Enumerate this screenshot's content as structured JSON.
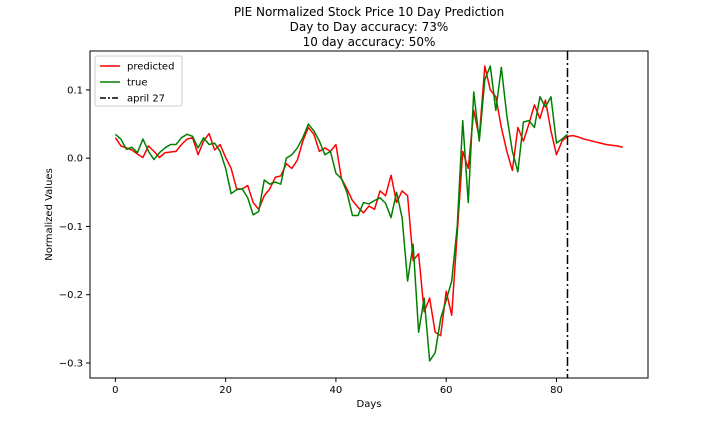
{
  "chart_data": {
    "type": "line",
    "title": [
      "PIE Normalized Stock Price 10 Day Prediction",
      "Day to Day accuracy: 73%",
      "10 day accuracy: 50%"
    ],
    "xlabel": "Days",
    "ylabel": "Normalized Values",
    "xlim": [
      -4.6,
      96.6
    ],
    "ylim": [
      -0.322,
      0.157
    ],
    "xticks": [
      0,
      20,
      40,
      60,
      80
    ],
    "yticks": [
      -0.3,
      -0.2,
      -0.1,
      0.0,
      0.1
    ],
    "ytick_labels": [
      "−0.3",
      "−0.2",
      "−0.1",
      "0.0",
      "0.1"
    ],
    "grid": false,
    "legend_position": "top-left",
    "vline": {
      "name": "april 27",
      "x": 82,
      "color": "#000000",
      "style": "dash-dot"
    },
    "series": [
      {
        "name": "predicted",
        "color": "#ff0000",
        "x": [
          0,
          1,
          2,
          3,
          4,
          5,
          6,
          7,
          8,
          9,
          10,
          11,
          12,
          13,
          14,
          15,
          16,
          17,
          18,
          19,
          20,
          21,
          22,
          23,
          24,
          25,
          26,
          27,
          28,
          29,
          30,
          31,
          32,
          33,
          34,
          35,
          36,
          37,
          38,
          39,
          40,
          41,
          42,
          43,
          44,
          45,
          46,
          47,
          48,
          49,
          50,
          51,
          52,
          53,
          54,
          55,
          56,
          57,
          58,
          59,
          60,
          61,
          62,
          63,
          64,
          65,
          66,
          67,
          68,
          69,
          70,
          71,
          72,
          73,
          74,
          75,
          76,
          77,
          78,
          79,
          80,
          81,
          82,
          83,
          84,
          85,
          86,
          87,
          88,
          89,
          90,
          91,
          92
        ],
        "y": [
          0.03,
          0.018,
          0.015,
          0.012,
          0.006,
          0.001,
          0.018,
          0.01,
          0.001,
          0.008,
          0.009,
          0.01,
          0.02,
          0.028,
          0.03,
          0.005,
          0.025,
          0.036,
          0.012,
          0.02,
          0.001,
          -0.015,
          -0.045,
          -0.045,
          -0.04,
          -0.065,
          -0.075,
          -0.055,
          -0.045,
          -0.028,
          -0.026,
          -0.008,
          -0.015,
          -0.003,
          0.025,
          0.045,
          0.035,
          0.01,
          0.015,
          0.01,
          0.02,
          -0.03,
          -0.045,
          -0.062,
          -0.072,
          -0.08,
          -0.07,
          -0.075,
          -0.048,
          -0.055,
          -0.025,
          -0.065,
          -0.048,
          -0.055,
          -0.15,
          -0.14,
          -0.225,
          -0.205,
          -0.255,
          -0.26,
          -0.195,
          -0.23,
          -0.11,
          0.01,
          -0.015,
          0.07,
          0.03,
          0.135,
          0.1,
          0.09,
          0.045,
          0.01,
          -0.018,
          0.045,
          0.025,
          0.05,
          0.078,
          0.058,
          0.085,
          0.04,
          0.005,
          0.025,
          0.032,
          0.033,
          0.031,
          0.028,
          0.026,
          0.024,
          0.022,
          0.02,
          0.019,
          0.018,
          0.016
        ]
      },
      {
        "name": "true",
        "color": "#008000",
        "x": [
          0,
          1,
          2,
          3,
          4,
          5,
          6,
          7,
          8,
          9,
          10,
          11,
          12,
          13,
          14,
          15,
          16,
          17,
          18,
          19,
          20,
          21,
          22,
          23,
          24,
          25,
          26,
          27,
          28,
          29,
          30,
          31,
          32,
          33,
          34,
          35,
          36,
          37,
          38,
          39,
          40,
          41,
          42,
          43,
          44,
          45,
          46,
          47,
          48,
          49,
          50,
          51,
          52,
          53,
          54,
          55,
          56,
          57,
          58,
          59,
          60,
          61,
          62,
          63,
          64,
          65,
          66,
          67,
          68,
          69,
          70,
          71,
          72,
          73,
          74,
          75,
          76,
          77,
          78,
          79,
          80,
          81,
          82
        ],
        "y": [
          0.035,
          0.028,
          0.013,
          0.016,
          0.008,
          0.028,
          0.01,
          -0.002,
          0.008,
          0.015,
          0.02,
          0.02,
          0.03,
          0.035,
          0.032,
          0.015,
          0.03,
          0.02,
          0.022,
          0.01,
          -0.015,
          -0.052,
          -0.046,
          -0.045,
          -0.058,
          -0.083,
          -0.078,
          -0.032,
          -0.038,
          -0.035,
          -0.038,
          0.0,
          0.005,
          0.015,
          0.03,
          0.05,
          0.04,
          0.025,
          0.005,
          0.01,
          -0.022,
          -0.03,
          -0.05,
          -0.084,
          -0.084,
          -0.065,
          -0.067,
          -0.062,
          -0.058,
          -0.066,
          -0.087,
          -0.05,
          -0.087,
          -0.18,
          -0.126,
          -0.255,
          -0.205,
          -0.297,
          -0.285,
          -0.235,
          -0.208,
          -0.18,
          -0.1,
          0.055,
          -0.065,
          0.097,
          0.025,
          0.115,
          0.135,
          0.07,
          0.133,
          0.062,
          0.01,
          -0.02,
          0.053,
          0.055,
          0.045,
          0.09,
          0.075,
          0.09,
          0.022,
          0.028,
          0.035
        ]
      }
    ]
  }
}
